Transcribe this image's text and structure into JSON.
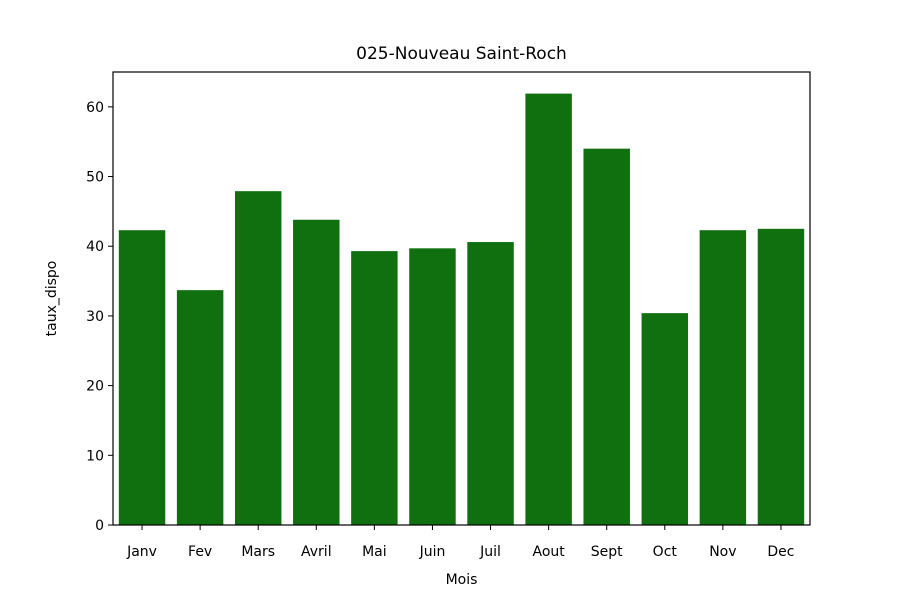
{
  "chart_data": {
    "type": "bar",
    "title": "025-Nouveau Saint-Roch",
    "xlabel": "Mois",
    "ylabel": "taux_dispo",
    "categories": [
      "Janv",
      "Fev",
      "Mars",
      "Avril",
      "Mai",
      "Juin",
      "Juil",
      "Aout",
      "Sept",
      "Oct",
      "Nov",
      "Dec"
    ],
    "values": [
      42.3,
      33.7,
      47.9,
      43.8,
      39.3,
      39.7,
      40.6,
      61.9,
      54.0,
      30.4,
      42.3,
      42.5
    ],
    "ylim": [
      0,
      65
    ],
    "yticks": [
      0,
      10,
      20,
      30,
      40,
      50,
      60
    ],
    "bar_color": "#107010",
    "grid": false
  }
}
